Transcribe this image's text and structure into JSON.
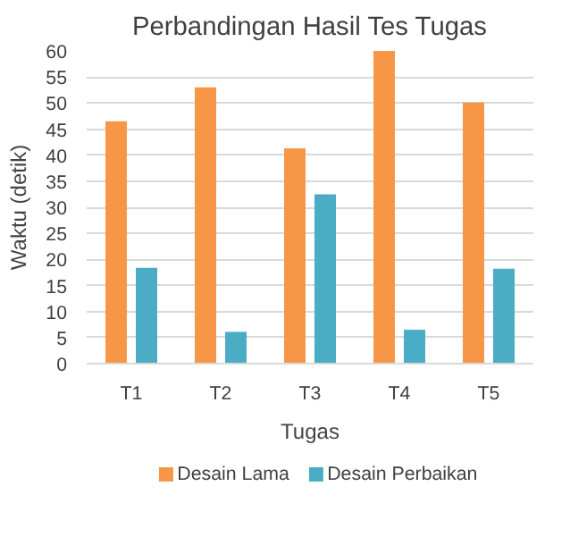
{
  "chart_data": {
    "type": "bar",
    "title": "Perbandingan Hasil Tes Tugas",
    "xlabel": "Tugas",
    "ylabel": "Waktu (detik)",
    "categories": [
      "T1",
      "T2",
      "T3",
      "T4",
      "T5"
    ],
    "series": [
      {
        "name": "Desain Lama",
        "color": "#f79646",
        "values": [
          46.5,
          53,
          41.3,
          60,
          50.1
        ]
      },
      {
        "name": "Desain Perbaikan",
        "color": "#4bacc6",
        "values": [
          18.4,
          6.1,
          32.5,
          6.5,
          18.2
        ]
      }
    ],
    "ylim": [
      0,
      60
    ],
    "yticks": [
      0,
      5,
      10,
      15,
      20,
      25,
      30,
      35,
      40,
      45,
      50,
      55,
      60
    ],
    "grid": "y",
    "legend": "bottom"
  }
}
